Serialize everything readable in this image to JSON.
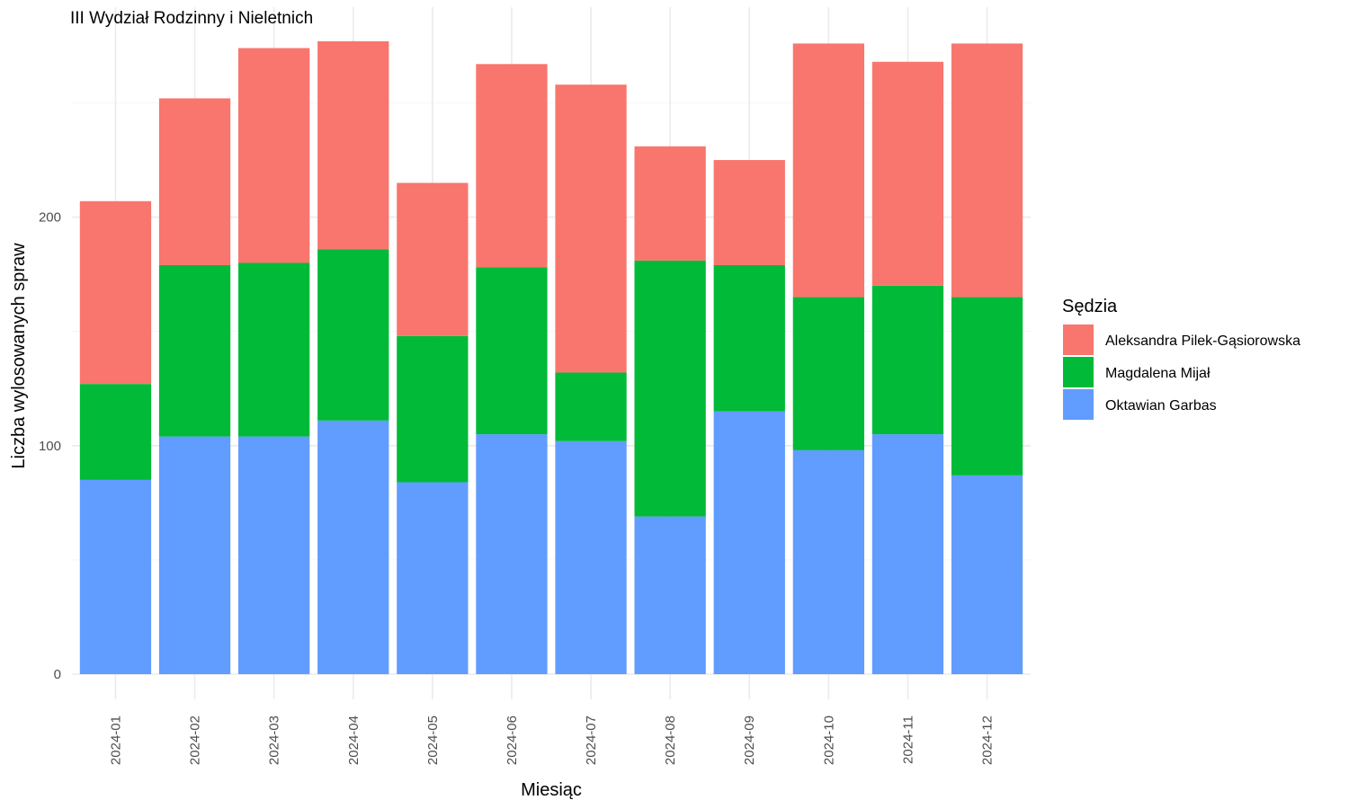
{
  "chart_data": {
    "type": "bar",
    "stacked": true,
    "title": "III Wydział Rodzinny i Nieletnich",
    "xlabel": "Miesiąc",
    "ylabel": "Liczba wylosowanych spraw",
    "ylim": [
      0,
      290
    ],
    "yticks": [
      0,
      100,
      200
    ],
    "grid": true,
    "legend_position": "right",
    "legend_title": "Sędzia",
    "categories": [
      "2024-01",
      "2024-02",
      "2024-03",
      "2024-04",
      "2024-05",
      "2024-06",
      "2024-07",
      "2024-08",
      "2024-09",
      "2024-10",
      "2024-11",
      "2024-12"
    ],
    "series": [
      {
        "name": "Oktawian Garbas",
        "color": "#619CFF",
        "values": [
          85,
          104,
          104,
          111,
          84,
          105,
          102,
          69,
          115,
          98,
          105,
          87
        ]
      },
      {
        "name": "Magdalena Mijał",
        "color": "#00BA38",
        "values": [
          42,
          75,
          76,
          75,
          64,
          73,
          30,
          112,
          64,
          67,
          65,
          78
        ]
      },
      {
        "name": "Aleksandra Pilek-Gąsiorowska",
        "color": "#F8766D",
        "values": [
          80,
          73,
          94,
          91,
          67,
          89,
          126,
          50,
          46,
          111,
          98,
          111
        ]
      }
    ],
    "legend_order": [
      "Aleksandra Pilek-Gąsiorowska",
      "Magdalena Mijał",
      "Oktawian Garbas"
    ]
  }
}
